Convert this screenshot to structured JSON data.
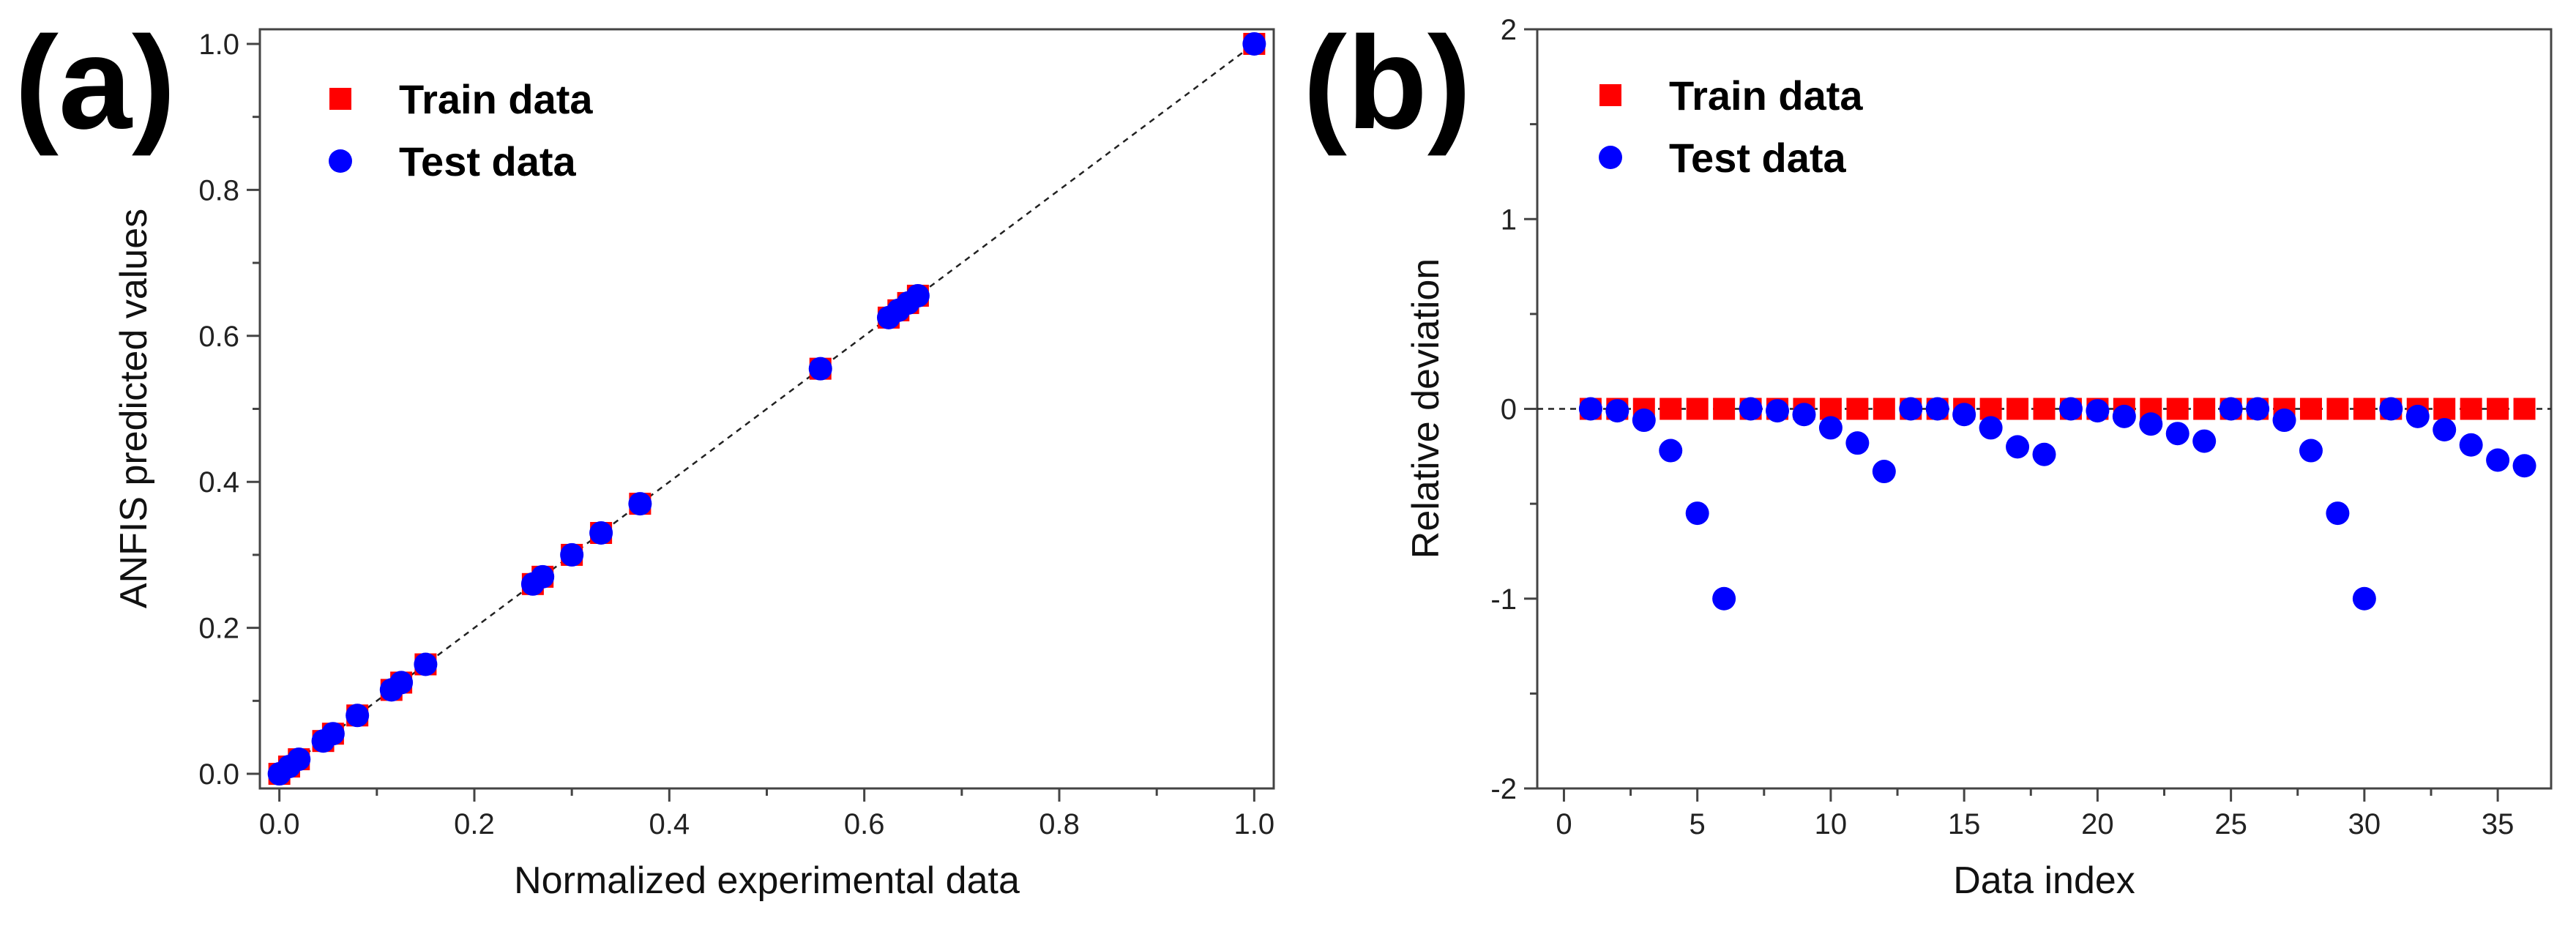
{
  "chart_data": [
    {
      "panel_label": "(a)",
      "type": "scatter",
      "xlabel": "Normalized experimental data",
      "ylabel": "ANFIS predicted values",
      "xlim": [
        -0.02,
        1.02
      ],
      "ylim": [
        -0.02,
        1.02
      ],
      "xticks": [
        0.0,
        0.2,
        0.4,
        0.6,
        0.8,
        1.0
      ],
      "yticks": [
        0.0,
        0.2,
        0.4,
        0.6,
        0.8,
        1.0
      ],
      "xtick_labels": [
        "0.0",
        "0.2",
        "0.4",
        "0.6",
        "0.8",
        "1.0"
      ],
      "ytick_labels": [
        "0.0",
        "0.2",
        "0.4",
        "0.6",
        "0.8",
        "1.0"
      ],
      "reference_line": "y = x (dashed)",
      "legend_position": "top-left",
      "series": [
        {
          "name": "Train data",
          "marker": "square",
          "color": "#ff0000",
          "x": [
            0.0,
            0.01,
            0.02,
            0.045,
            0.055,
            0.08,
            0.115,
            0.125,
            0.15,
            0.26,
            0.27,
            0.3,
            0.33,
            0.37,
            0.555,
            0.625,
            0.635,
            0.645,
            0.655,
            1.0
          ],
          "y": [
            0.0,
            0.01,
            0.02,
            0.045,
            0.055,
            0.08,
            0.115,
            0.125,
            0.15,
            0.26,
            0.27,
            0.3,
            0.33,
            0.37,
            0.555,
            0.625,
            0.635,
            0.645,
            0.655,
            1.0
          ]
        },
        {
          "name": "Test data",
          "marker": "circle",
          "color": "#0000ff",
          "x": [
            0.0,
            0.01,
            0.02,
            0.045,
            0.055,
            0.08,
            0.115,
            0.125,
            0.15,
            0.26,
            0.27,
            0.3,
            0.33,
            0.37,
            0.555,
            0.625,
            0.635,
            0.645,
            0.655,
            1.0
          ],
          "y": [
            0.0,
            0.01,
            0.02,
            0.045,
            0.055,
            0.08,
            0.115,
            0.125,
            0.15,
            0.26,
            0.27,
            0.3,
            0.33,
            0.37,
            0.555,
            0.625,
            0.635,
            0.645,
            0.655,
            1.0
          ]
        }
      ]
    },
    {
      "panel_label": "(b)",
      "type": "scatter",
      "xlabel": "Data index",
      "ylabel": "Relative deviation",
      "xlim": [
        -1,
        37
      ],
      "ylim": [
        -2,
        2
      ],
      "xticks": [
        0,
        5,
        10,
        15,
        20,
        25,
        30,
        35
      ],
      "yticks": [
        -2,
        -1,
        0,
        1,
        2
      ],
      "xtick_labels": [
        "0",
        "5",
        "10",
        "15",
        "20",
        "25",
        "30",
        "35"
      ],
      "ytick_labels": [
        "-2",
        "-1",
        "0",
        "1",
        "2"
      ],
      "reference_line": "y = 0 (dashed)",
      "legend_position": "top-left",
      "series": [
        {
          "name": "Train data",
          "marker": "square",
          "color": "#ff0000",
          "x": [
            1,
            2,
            3,
            4,
            5,
            6,
            7,
            8,
            9,
            10,
            11,
            12,
            13,
            14,
            15,
            16,
            17,
            18,
            19,
            20,
            21,
            22,
            23,
            24,
            25,
            26,
            27,
            28,
            29,
            30,
            31,
            32,
            33,
            34,
            35,
            36
          ],
          "y": [
            0,
            0,
            0,
            0,
            0,
            0,
            0,
            0,
            0,
            0,
            0,
            0,
            0,
            0,
            0,
            0,
            0,
            0,
            0,
            0,
            0,
            0,
            0,
            0,
            0,
            0,
            0,
            0,
            0,
            0,
            0,
            0,
            0,
            0,
            0,
            0
          ]
        },
        {
          "name": "Test data",
          "marker": "circle",
          "color": "#0000ff",
          "x": [
            1,
            2,
            3,
            4,
            5,
            6,
            7,
            8,
            9,
            10,
            11,
            12,
            13,
            14,
            15,
            16,
            17,
            18,
            19,
            20,
            21,
            22,
            23,
            24,
            25,
            26,
            27,
            28,
            29,
            30,
            31,
            32,
            33,
            34,
            35,
            36
          ],
          "y": [
            0,
            -0.01,
            -0.06,
            -0.22,
            -0.55,
            -1.0,
            0,
            -0.01,
            -0.03,
            -0.1,
            -0.18,
            -0.33,
            0,
            0,
            -0.03,
            -0.1,
            -0.2,
            -0.24,
            0,
            -0.01,
            -0.04,
            -0.08,
            -0.13,
            -0.17,
            0,
            0,
            -0.06,
            -0.22,
            -0.55,
            -1.0,
            0,
            -0.04,
            -0.11,
            -0.19,
            -0.27,
            -0.3
          ]
        }
      ]
    }
  ]
}
